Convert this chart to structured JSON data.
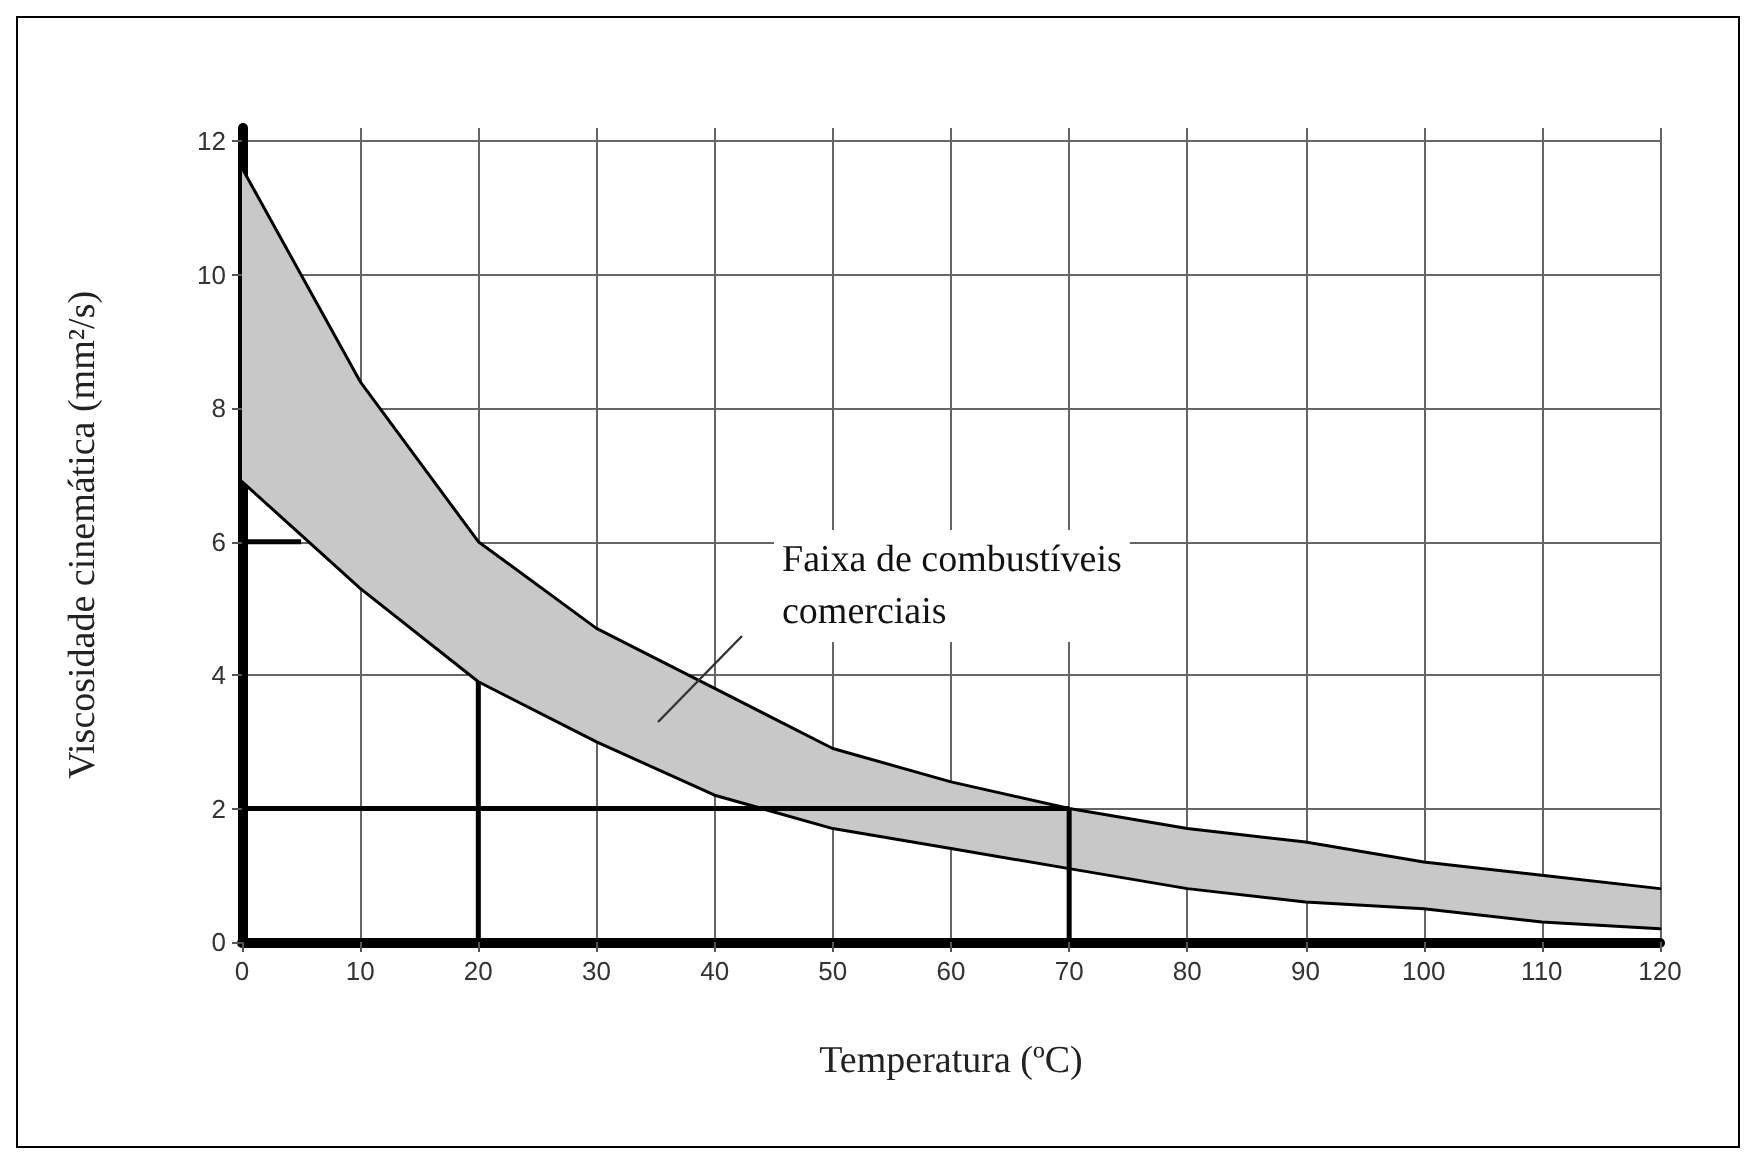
{
  "chart_data": {
    "type": "line",
    "xlabel": "Temperatura (ºC)",
    "ylabel": "Viscosidade cinemática (mm²/s)",
    "x": [
      0,
      10,
      20,
      30,
      40,
      50,
      60,
      70,
      80,
      90,
      100,
      110,
      120
    ],
    "series": [
      {
        "color": "#000000",
        "values": [
          11.6,
          8.4,
          6.0,
          4.7,
          3.8,
          2.9,
          2.4,
          2.0,
          1.7,
          1.5,
          1.2,
          1.0,
          0.8
        ],
        "upper": [
          11.6,
          8.4,
          6.0,
          4.7,
          3.8,
          2.9,
          2.4,
          2.0,
          1.7,
          1.5,
          1.2,
          1.0,
          0.8
        ],
        "lower": [
          6.9,
          5.3,
          3.9,
          3.0,
          2.2,
          1.7,
          1.4,
          1.1,
          0.8,
          0.6,
          0.5,
          0.3,
          0.2
        ]
      },
      {
        "color": "#000000",
        "values": [
          6.9,
          5.3,
          3.9,
          3.0,
          2.2,
          1.7,
          1.4,
          1.1,
          0.8,
          0.6,
          0.5,
          0.3,
          0.2
        ]
      },
      {
        "type": "line",
        "color": "#000000",
        "x": [
          0,
          5
        ],
        "values": [
          6,
          6
        ]
      },
      {
        "type": "line",
        "color": "#000000",
        "x": [
          20,
          20
        ],
        "values": [
          0,
          3.9
        ]
      },
      {
        "type": "line",
        "color": "#000000",
        "x": [
          0,
          70
        ],
        "values": [
          2,
          2
        ]
      },
      {
        "type": "line",
        "color": "#000000",
        "x": [
          70,
          70
        ],
        "values": [
          0,
          2
        ]
      }
    ],
    "annotations": [
      "Faixa de combustíveis\ncomerciais"
    ],
    "xlim": [
      0,
      120
    ],
    "xticks": [
      0,
      10,
      20,
      30,
      40,
      50,
      60,
      70,
      80,
      90,
      100,
      110,
      120
    ],
    "ylim": [
      0,
      12.2
    ],
    "yticks": [
      0,
      2,
      4,
      6,
      8,
      10,
      12
    ],
    "grid": true,
    "marker": "none"
  }
}
